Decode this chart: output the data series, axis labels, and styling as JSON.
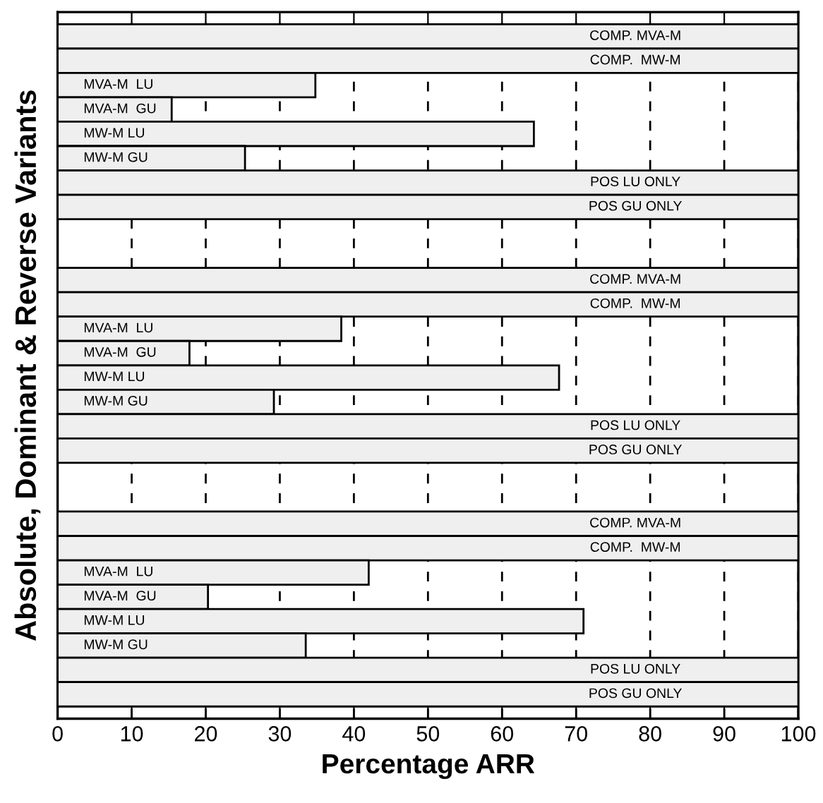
{
  "chart_data": {
    "type": "bar",
    "orientation": "horizontal",
    "xlabel": "Percentage ARR",
    "ylabel": "Absolute, Dominant & Reverse Variants",
    "categories": [
      "COMP. MVA-M",
      "COMP.  MW-M",
      "MVA-M  LU",
      "MVA-M  GU",
      "MW-M LU",
      "MW-M GU",
      "POS LU ONLY",
      "POS GU ONLY",
      null,
      null,
      "COMP. MVA-M",
      "COMP.  MW-M",
      "MVA-M  LU",
      "MVA-M  GU",
      "MW-M LU",
      "MW-M GU",
      "POS LU ONLY",
      "POS GU ONLY",
      null,
      null,
      "COMP. MVA-M",
      "COMP.  MW-M",
      "MVA-M  LU",
      "MVA-M  GU",
      "MW-M LU",
      "MW-M GU",
      "POS LU ONLY",
      "POS GU ONLY"
    ],
    "values": [
      100,
      100,
      34.8,
      15.4,
      64.3,
      25.3,
      100,
      100,
      null,
      null,
      100,
      100,
      38.3,
      17.8,
      67.7,
      29.2,
      100,
      100,
      null,
      null,
      100,
      100,
      42,
      20.3,
      71,
      33.5,
      100,
      100
    ],
    "color": "#efefef",
    "xlim": [
      0,
      100
    ],
    "xticks": [
      0,
      10,
      20,
      30,
      40,
      50,
      60,
      70,
      80,
      90,
      100
    ],
    "grid": "x",
    "line_style": "dashed"
  }
}
